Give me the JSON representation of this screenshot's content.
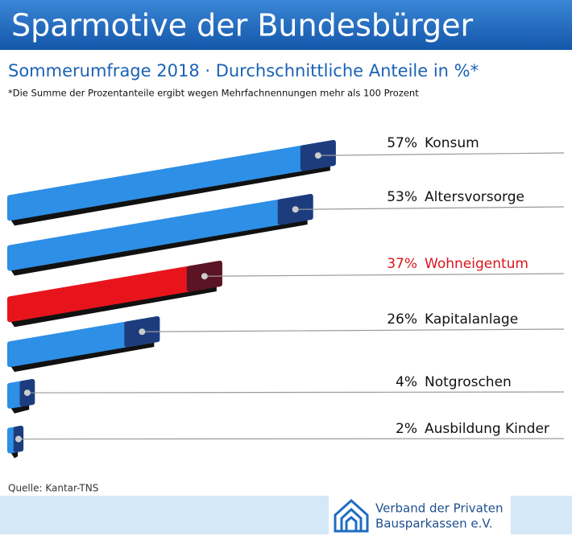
{
  "chart_data": {
    "type": "bar3d",
    "title": "Sparmotive der Bundesbürger",
    "subtitle": "Sommerumfrage 2018 · Durchschnittliche Anteile in %*",
    "footnote": "*Die Summe der Prozentanteile ergibt wegen Mehrfachnennungen mehr als 100 Prozent",
    "categories": [
      "Konsum",
      "Altersvorsorge",
      "Wohneigentum",
      "Kapitalanlage",
      "Notgroschen",
      "Ausbildung Kinder"
    ],
    "values": [
      57,
      53,
      37,
      26,
      4,
      2
    ],
    "value_labels": [
      "57%",
      "53%",
      "37%",
      "26%",
      "4%",
      "2%"
    ],
    "colors": [
      "#2e8fe6",
      "#2e8fe6",
      "#e8141c",
      "#2e8fe6",
      "#2e8fe6",
      "#2e8fe6"
    ],
    "label_colors": [
      "#111111",
      "#111111",
      "#d9141c",
      "#111111",
      "#111111",
      "#111111"
    ],
    "source": "Quelle: Kantar-TNS",
    "logo": [
      "Verband der Privaten",
      "Bausparkassen e.V."
    ]
  }
}
